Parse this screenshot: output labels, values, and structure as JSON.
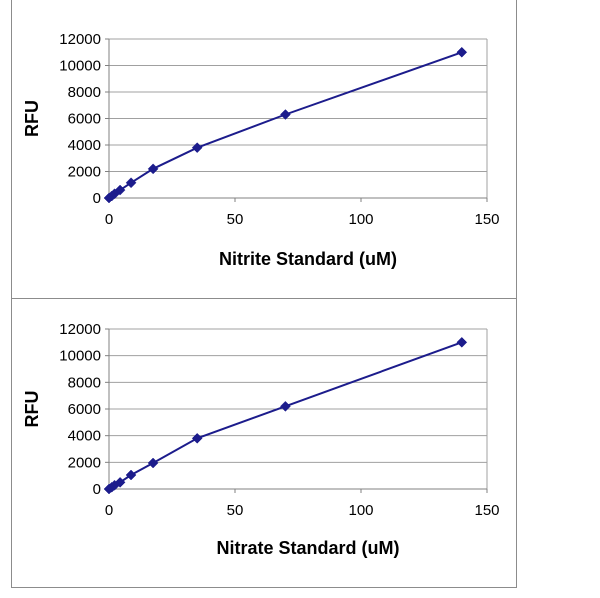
{
  "colors": {
    "series": "#1c1c8c",
    "marker": "#1c1c8c",
    "grid": "#a0a0a0",
    "axis": "#808080"
  },
  "chart_data": [
    {
      "type": "line",
      "xlabel": "Nitrite Standard (uM)",
      "ylabel": "RFU",
      "xlim": [
        0,
        150
      ],
      "ylim": [
        0,
        12000
      ],
      "xticks": [
        0,
        50,
        100,
        150
      ],
      "yticks": [
        0,
        2000,
        4000,
        6000,
        8000,
        10000,
        12000
      ],
      "grid": "horizontal",
      "marker": "diamond",
      "series": [
        {
          "x": [
            0,
            1.1,
            2.2,
            4.4,
            8.75,
            17.5,
            35,
            70,
            140
          ],
          "y": [
            0,
            150,
            320,
            600,
            1150,
            2200,
            3800,
            6300,
            11000
          ]
        }
      ]
    },
    {
      "type": "line",
      "xlabel": "Nitrate Standard (uM)",
      "ylabel": "RFU",
      "xlim": [
        0,
        150
      ],
      "ylim": [
        0,
        12000
      ],
      "xticks": [
        0,
        50,
        100,
        150
      ],
      "yticks": [
        0,
        2000,
        4000,
        6000,
        8000,
        10000,
        12000
      ],
      "grid": "horizontal",
      "marker": "diamond",
      "series": [
        {
          "x": [
            0,
            1.1,
            2.2,
            4.4,
            8.75,
            17.5,
            35,
            70,
            140
          ],
          "y": [
            0,
            130,
            280,
            500,
            1050,
            1950,
            3800,
            6200,
            11000
          ]
        }
      ]
    }
  ]
}
